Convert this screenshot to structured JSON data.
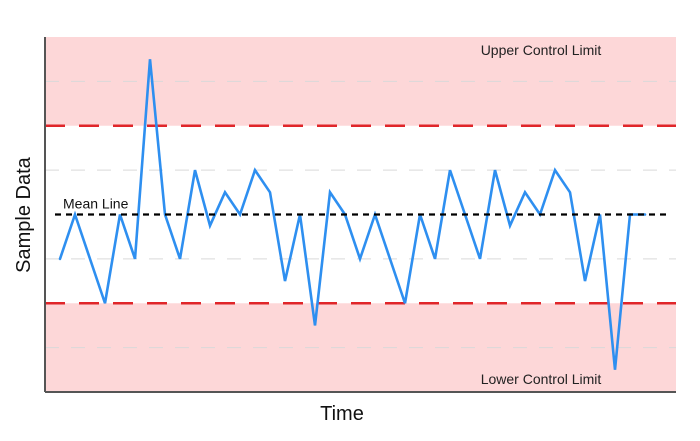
{
  "chart_data": {
    "type": "line",
    "title": "",
    "xlabel": "Time",
    "ylabel": "Sample Data",
    "x_ticks_labeled": false,
    "y_ticks_labeled": false,
    "ylim": [
      0,
      16
    ],
    "xlim": [
      0,
      40
    ],
    "grid": "horizontal dashed",
    "control_limits": {
      "upper": 12,
      "mean": 8,
      "lower": 4,
      "upper_label": "Upper Control Limit",
      "mean_label": "Mean Line",
      "lower_label": "Lower Control Limit"
    },
    "colors": {
      "series": "#2e8ff0",
      "control_lines": "#e0262a",
      "mean_line": "#000000",
      "out_of_control_zone": "#fdd7d8",
      "grid": "#d9d9d9"
    },
    "series": [
      {
        "x": [
          0,
          1,
          2,
          3,
          4,
          5,
          6,
          7,
          8,
          9,
          10,
          11,
          12,
          13,
          14,
          15,
          16,
          17,
          18,
          19,
          20,
          21,
          22,
          23,
          24,
          25,
          26,
          27,
          28,
          29,
          30,
          31,
          32,
          33,
          34,
          35,
          36,
          37,
          38,
          39
        ],
        "values": [
          6,
          8,
          6,
          4,
          8,
          6,
          15,
          8,
          6,
          10,
          7.5,
          9,
          8,
          10,
          9,
          5,
          8,
          3,
          9,
          8,
          6,
          8,
          6,
          4,
          8,
          6,
          10,
          8,
          6,
          10,
          7.5,
          9,
          8,
          10,
          9,
          5,
          8,
          1,
          8,
          8
        ]
      }
    ]
  }
}
